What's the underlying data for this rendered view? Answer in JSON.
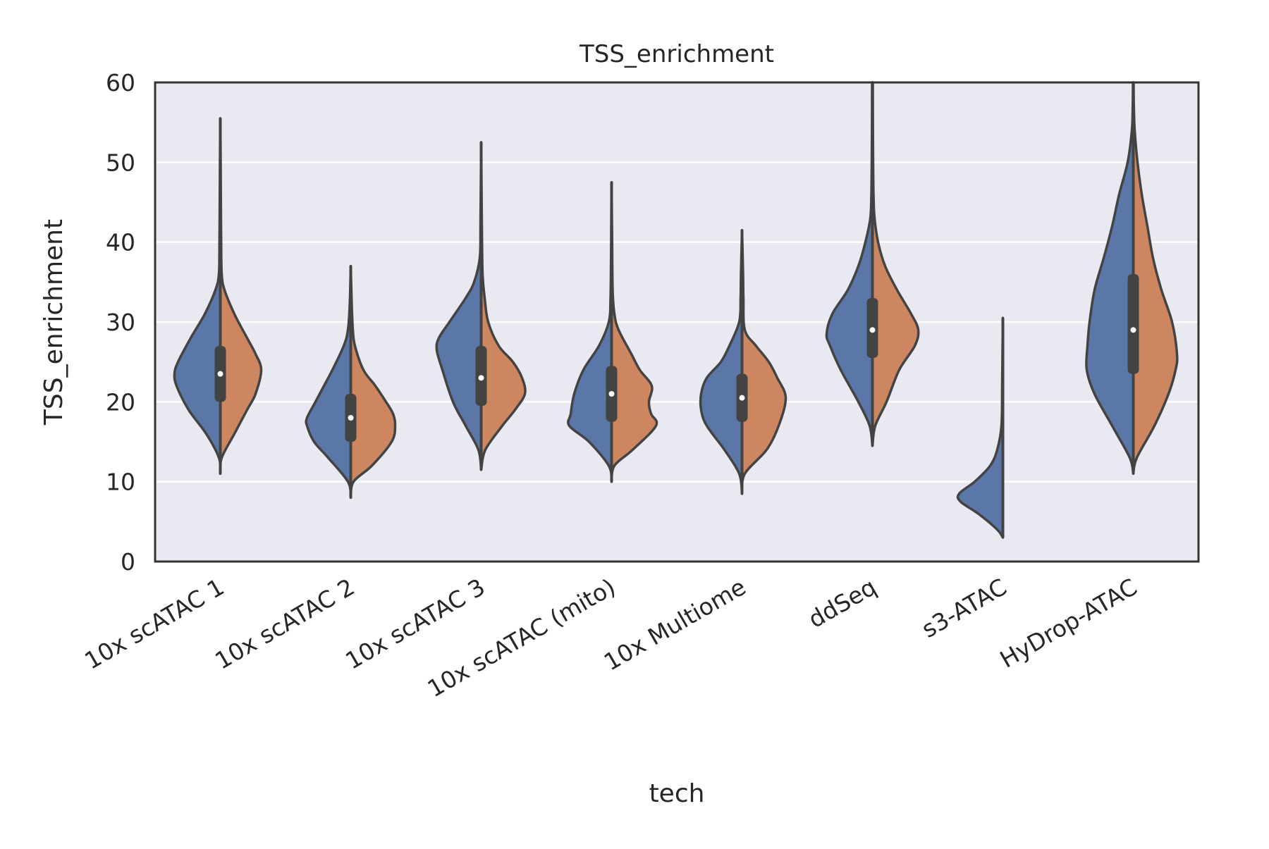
{
  "chart_data": {
    "type": "violin",
    "split": true,
    "title": "TSS_enrichment",
    "xlabel": "tech",
    "ylabel": "TSS_enrichment",
    "ylim": [
      0,
      60
    ],
    "yticks": [
      0,
      10,
      20,
      30,
      40,
      50,
      60
    ],
    "grid": true,
    "legend": "none",
    "colors": {
      "left": "#5a77a8",
      "right": "#cd865f",
      "outline": "#434343",
      "background": "#e9e9f1",
      "grid": "#ffffff"
    },
    "categories": [
      "10x scATAC 1",
      "10x scATAC 2",
      "10x scATAC 3",
      "10x scATAC (mito)",
      "10x Multiome",
      "ddSeq",
      "s3-ATAC",
      "HyDrop-ATAC"
    ],
    "violins": [
      {
        "category": "10x scATAC 1",
        "median": 23.5,
        "q1": 20.0,
        "q3": 27.0,
        "left": [
          [
            11,
            0
          ],
          [
            13,
            0.02
          ],
          [
            16,
            0.2
          ],
          [
            19,
            0.45
          ],
          [
            22,
            0.62
          ],
          [
            23.5,
            0.65
          ],
          [
            25,
            0.6
          ],
          [
            28,
            0.42
          ],
          [
            31,
            0.22
          ],
          [
            34,
            0.07
          ],
          [
            36,
            0.02
          ],
          [
            40,
            0.012
          ],
          [
            45,
            0.008
          ],
          [
            50,
            0.005
          ],
          [
            55.5,
            0
          ]
        ],
        "right": [
          [
            11,
            0
          ],
          [
            13,
            0.02
          ],
          [
            16,
            0.2
          ],
          [
            19,
            0.38
          ],
          [
            21,
            0.5
          ],
          [
            24,
            0.58
          ],
          [
            26,
            0.5
          ],
          [
            28,
            0.38
          ],
          [
            31,
            0.2
          ],
          [
            34,
            0.06
          ],
          [
            36,
            0.02
          ],
          [
            40,
            0.012
          ],
          [
            45,
            0.008
          ],
          [
            50,
            0.005
          ],
          [
            55.5,
            0
          ]
        ]
      },
      {
        "category": "10x scATAC 2",
        "median": 18.0,
        "q1": 15.0,
        "q3": 21.0,
        "left": [
          [
            8,
            0
          ],
          [
            10,
            0.04
          ],
          [
            13,
            0.32
          ],
          [
            15,
            0.52
          ],
          [
            17,
            0.62
          ],
          [
            18,
            0.62
          ],
          [
            20,
            0.5
          ],
          [
            22,
            0.38
          ],
          [
            24,
            0.26
          ],
          [
            27,
            0.1
          ],
          [
            29,
            0.04
          ],
          [
            32,
            0.015
          ],
          [
            37,
            0
          ]
        ],
        "right": [
          [
            8,
            0
          ],
          [
            10,
            0.04
          ],
          [
            12,
            0.3
          ],
          [
            15,
            0.58
          ],
          [
            17,
            0.63
          ],
          [
            18.5,
            0.6
          ],
          [
            20,
            0.5
          ],
          [
            22,
            0.35
          ],
          [
            24,
            0.18
          ],
          [
            27,
            0.06
          ],
          [
            29,
            0.03
          ],
          [
            32,
            0.015
          ],
          [
            37,
            0
          ]
        ]
      },
      {
        "category": "10x scATAC 3",
        "median": 23.0,
        "q1": 19.5,
        "q3": 27.0,
        "left": [
          [
            11.5,
            0
          ],
          [
            14,
            0.04
          ],
          [
            17,
            0.22
          ],
          [
            20,
            0.4
          ],
          [
            24,
            0.55
          ],
          [
            26.5,
            0.63
          ],
          [
            28,
            0.6
          ],
          [
            30,
            0.45
          ],
          [
            33,
            0.22
          ],
          [
            35,
            0.1
          ],
          [
            38,
            0.02
          ],
          [
            42,
            0.01
          ],
          [
            47,
            0.005
          ],
          [
            52.5,
            0
          ]
        ],
        "right": [
          [
            11.5,
            0
          ],
          [
            14,
            0.06
          ],
          [
            17,
            0.3
          ],
          [
            19,
            0.48
          ],
          [
            21,
            0.62
          ],
          [
            23,
            0.58
          ],
          [
            25,
            0.45
          ],
          [
            27,
            0.25
          ],
          [
            30,
            0.1
          ],
          [
            33,
            0.05
          ],
          [
            36,
            0.02
          ],
          [
            42,
            0.01
          ],
          [
            47,
            0.005
          ],
          [
            52.5,
            0
          ]
        ]
      },
      {
        "category": "10x scATAC (mito)",
        "median": 21.0,
        "q1": 17.5,
        "q3": 24.5,
        "left": [
          [
            10,
            0
          ],
          [
            12,
            0.04
          ],
          [
            15,
            0.32
          ],
          [
            17,
            0.6
          ],
          [
            18.5,
            0.58
          ],
          [
            21,
            0.53
          ],
          [
            24,
            0.4
          ],
          [
            27,
            0.18
          ],
          [
            30,
            0.04
          ],
          [
            33,
            0.015
          ],
          [
            38,
            0.008
          ],
          [
            42,
            0.005
          ],
          [
            47.5,
            0
          ]
        ],
        "right": [
          [
            10,
            0
          ],
          [
            12,
            0.04
          ],
          [
            14,
            0.3
          ],
          [
            17,
            0.63
          ],
          [
            18.5,
            0.56
          ],
          [
            20,
            0.53
          ],
          [
            22,
            0.57
          ],
          [
            24,
            0.4
          ],
          [
            26,
            0.28
          ],
          [
            29,
            0.1
          ],
          [
            31,
            0.04
          ],
          [
            34,
            0.015
          ],
          [
            40,
            0.008
          ],
          [
            47.5,
            0
          ]
        ]
      },
      {
        "category": "10x Multiome",
        "median": 20.5,
        "q1": 17.5,
        "q3": 23.5,
        "left": [
          [
            8.5,
            0
          ],
          [
            11,
            0.04
          ],
          [
            14,
            0.25
          ],
          [
            17,
            0.5
          ],
          [
            19,
            0.58
          ],
          [
            21,
            0.58
          ],
          [
            23,
            0.5
          ],
          [
            25,
            0.3
          ],
          [
            27,
            0.18
          ],
          [
            30,
            0.04
          ],
          [
            33,
            0.02
          ],
          [
            36,
            0.015
          ],
          [
            41.5,
            0
          ]
        ],
        "right": [
          [
            8.5,
            0
          ],
          [
            11,
            0.04
          ],
          [
            14,
            0.35
          ],
          [
            17,
            0.52
          ],
          [
            20.5,
            0.62
          ],
          [
            23,
            0.5
          ],
          [
            25,
            0.38
          ],
          [
            27,
            0.2
          ],
          [
            29,
            0.04
          ],
          [
            33,
            0.02
          ],
          [
            36,
            0.015
          ],
          [
            41.5,
            0
          ]
        ]
      },
      {
        "category": "ddSeq",
        "median": 29.0,
        "q1": 25.5,
        "q3": 33.0,
        "left": [
          [
            14.5,
            0
          ],
          [
            17,
            0.04
          ],
          [
            20,
            0.2
          ],
          [
            24,
            0.45
          ],
          [
            27,
            0.6
          ],
          [
            28.5,
            0.65
          ],
          [
            31,
            0.57
          ],
          [
            34,
            0.35
          ],
          [
            37,
            0.2
          ],
          [
            40,
            0.1
          ],
          [
            43,
            0.03
          ],
          [
            46,
            0.015
          ],
          [
            52,
            0.008
          ],
          [
            60,
            0.005
          ]
        ],
        "right": [
          [
            14.5,
            0
          ],
          [
            17,
            0.04
          ],
          [
            20,
            0.2
          ],
          [
            24,
            0.38
          ],
          [
            27,
            0.6
          ],
          [
            29,
            0.65
          ],
          [
            31,
            0.55
          ],
          [
            34,
            0.35
          ],
          [
            37,
            0.18
          ],
          [
            40,
            0.08
          ],
          [
            43,
            0.03
          ],
          [
            46,
            0.015
          ],
          [
            52,
            0.008
          ],
          [
            60,
            0.005
          ]
        ]
      },
      {
        "category": "s3-ATAC",
        "median": null,
        "q1": null,
        "q3": null,
        "left": [
          [
            3,
            0
          ],
          [
            4,
            0.08
          ],
          [
            6,
            0.35
          ],
          [
            7.5,
            0.6
          ],
          [
            8.5,
            0.62
          ],
          [
            10,
            0.4
          ],
          [
            12,
            0.18
          ],
          [
            14,
            0.08
          ],
          [
            17,
            0.02
          ],
          [
            22,
            0.01
          ],
          [
            30.5,
            0
          ]
        ],
        "right": []
      },
      {
        "category": "HyDrop-ATAC",
        "median": 29.0,
        "q1": 23.5,
        "q3": 36.0,
        "left": [
          [
            11,
            0
          ],
          [
            13,
            0.05
          ],
          [
            17,
            0.3
          ],
          [
            21,
            0.55
          ],
          [
            24,
            0.66
          ],
          [
            27,
            0.65
          ],
          [
            30,
            0.62
          ],
          [
            34,
            0.55
          ],
          [
            38,
            0.42
          ],
          [
            42,
            0.3
          ],
          [
            46,
            0.2
          ],
          [
            50,
            0.08
          ],
          [
            54,
            0.02
          ],
          [
            57,
            0.008
          ],
          [
            60,
            0.004
          ]
        ],
        "right": [
          [
            11,
            0
          ],
          [
            13,
            0.05
          ],
          [
            17,
            0.3
          ],
          [
            21,
            0.5
          ],
          [
            24,
            0.6
          ],
          [
            26,
            0.62
          ],
          [
            30,
            0.55
          ],
          [
            34,
            0.4
          ],
          [
            38,
            0.28
          ],
          [
            42,
            0.2
          ],
          [
            46,
            0.12
          ],
          [
            50,
            0.06
          ],
          [
            54,
            0.02
          ],
          [
            57,
            0.008
          ],
          [
            60,
            0.004
          ]
        ]
      }
    ]
  }
}
